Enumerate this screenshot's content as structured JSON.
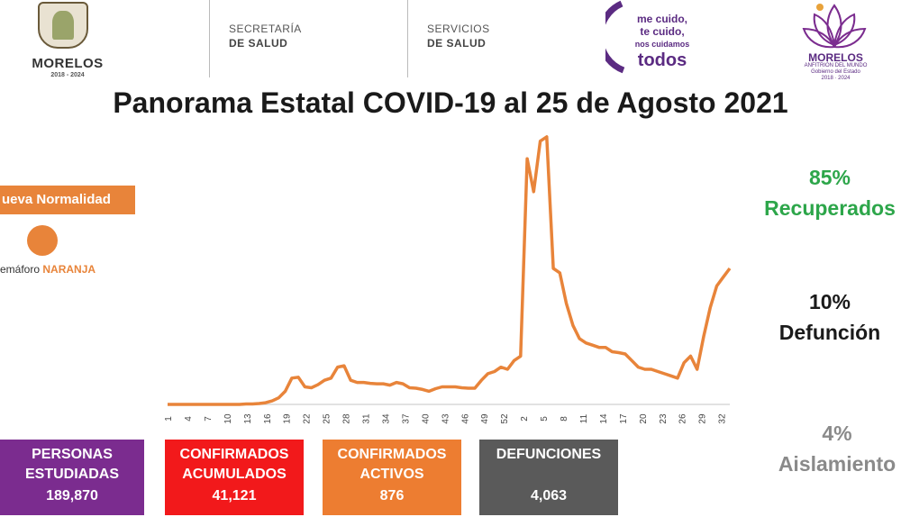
{
  "header": {
    "gov_name": "MORELOS",
    "gov_years": "2018 - 2024",
    "dept1_line1": "SECRETARÍA",
    "dept1_line2": "DE SALUD",
    "dept2_line1": "SERVICIOS",
    "dept2_line2": "DE SALUD",
    "campaign_line1": "me cuido,",
    "campaign_line2": "te cuido,",
    "campaign_line3": "nos cuidamos",
    "campaign_line4": "todos",
    "brand_name": "MORELOS",
    "brand_tag": "ANFITRIÓN DEL MUNDO",
    "brand_sub1": "Gobierno del Estado",
    "brand_sub2": "2018 · 2024"
  },
  "title": "Panorama Estatal COVID-19 al 25 de Agosto 2021",
  "phase": {
    "label": "ueva Normalidad",
    "semaforo_prefix": "emáforo ",
    "semaforo_color": "NARANJA",
    "color": "#e8843a"
  },
  "stats": {
    "recovered_pct": "85%",
    "recovered_label": "Recuperados",
    "death_pct": "10%",
    "death_label": "Defunción",
    "isolation_pct": "4%",
    "isolation_label": "Aislamiento",
    "colors": {
      "recovered": "#2da64a",
      "death": "#1a1a1a",
      "isolation": "#8a8a8a"
    }
  },
  "boxes": [
    {
      "line1": "PERSONAS",
      "line2": "ESTUDIADAS",
      "value": "189,870",
      "color": "#7b2c8f"
    },
    {
      "line1": "CONFIRMADOS",
      "line2": "ACUMULADOS",
      "value": "41,121",
      "color": "#f2191b"
    },
    {
      "line1": "CONFIRMADOS",
      "line2": "ACTIVOS",
      "value": "876",
      "color": "#ed7d31"
    },
    {
      "line1": "DEFUNCIONES",
      "line2": "",
      "value": "4,063",
      "color": "#5a5a5a"
    }
  ],
  "chart_data": {
    "type": "line",
    "color": "#e8843a",
    "grid": false,
    "x_tick_labels": [
      "1",
      "4",
      "7",
      "10",
      "13",
      "16",
      "19",
      "22",
      "25",
      "28",
      "31",
      "34",
      "37",
      "40",
      "43",
      "46",
      "49",
      "52",
      "2",
      "5",
      "8",
      "11",
      "14",
      "17",
      "20",
      "23",
      "26",
      "29",
      "32"
    ],
    "x": [
      0,
      1,
      2,
      3,
      4,
      5,
      6,
      7,
      8,
      9,
      10,
      11,
      12,
      13,
      14,
      15,
      16,
      17,
      18,
      19,
      20,
      21,
      22,
      23,
      24,
      25,
      26,
      27,
      28,
      29,
      30,
      31,
      32,
      33,
      34,
      35,
      36,
      37,
      38,
      39,
      40,
      41,
      42,
      43,
      44,
      45,
      46,
      47,
      48,
      49,
      50,
      51,
      52,
      53,
      54,
      55,
      56,
      57,
      58,
      59,
      60,
      61,
      62,
      63,
      64,
      65,
      66,
      67,
      68,
      69,
      70,
      71,
      72,
      73,
      74,
      75,
      76,
      77,
      78,
      79,
      80,
      81,
      82,
      83,
      84,
      85,
      86
    ],
    "values": [
      0,
      0,
      0,
      0,
      0,
      0,
      0,
      0,
      0,
      0,
      0,
      0,
      1,
      1,
      2,
      4,
      8,
      15,
      30,
      60,
      62,
      40,
      38,
      45,
      55,
      60,
      85,
      88,
      55,
      50,
      50,
      48,
      47,
      47,
      44,
      50,
      47,
      38,
      37,
      34,
      30,
      36,
      40,
      40,
      40,
      38,
      37,
      37,
      55,
      70,
      75,
      85,
      80,
      100,
      110,
      560,
      485,
      600,
      610,
      310,
      300,
      230,
      180,
      150,
      140,
      135,
      130,
      130,
      120,
      118,
      115,
      100,
      85,
      80,
      80,
      75,
      70,
      65,
      60,
      95,
      110,
      80,
      155,
      220,
      270,
      290,
      310
    ],
    "ylim": [
      0,
      620
    ]
  }
}
